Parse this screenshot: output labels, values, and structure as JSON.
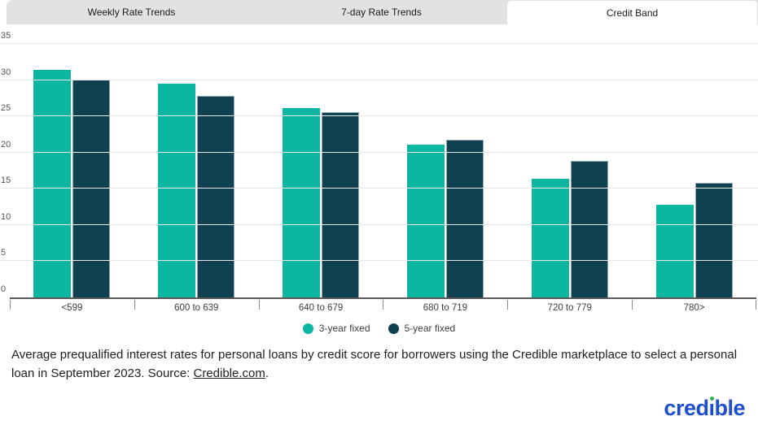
{
  "tabs": [
    {
      "label": "Weekly Rate Trends",
      "active": false
    },
    {
      "label": "7-day Rate Trends",
      "active": false
    },
    {
      "label": "Credit Band",
      "active": true
    }
  ],
  "chart_data": {
    "type": "bar",
    "categories": [
      "<599",
      "600 to 639",
      "640 to 679",
      "680 to 719",
      "720 to 779",
      "780>"
    ],
    "series": [
      {
        "name": "3-year fixed",
        "color": "#0db6a0",
        "values": [
          31.4,
          29.5,
          26.1,
          21.1,
          16.4,
          12.8
        ]
      },
      {
        "name": "5-year fixed",
        "color": "#0f4150",
        "values": [
          30.1,
          27.8,
          25.6,
          21.8,
          18.8,
          15.8
        ]
      }
    ],
    "title": "",
    "xlabel": "",
    "ylabel": "",
    "ylim": [
      0,
      35
    ],
    "y_ticks": [
      0,
      5,
      10,
      15,
      20,
      25,
      30,
      35
    ],
    "grid": true,
    "legend_position": "bottom"
  },
  "caption": {
    "text_before_link": "Average prequalified interest rates for personal loans by credit score for borrowers using the Credible marketplace to select a personal loan in September 2023. Source: ",
    "link_text": "Credible.com",
    "text_after_link": "."
  },
  "logo": {
    "full_text": "credible",
    "part1": "cred",
    "dotless_i": "ı",
    "part2": "ble",
    "blue": "#1d4ecc",
    "green": "#2eb34b"
  }
}
